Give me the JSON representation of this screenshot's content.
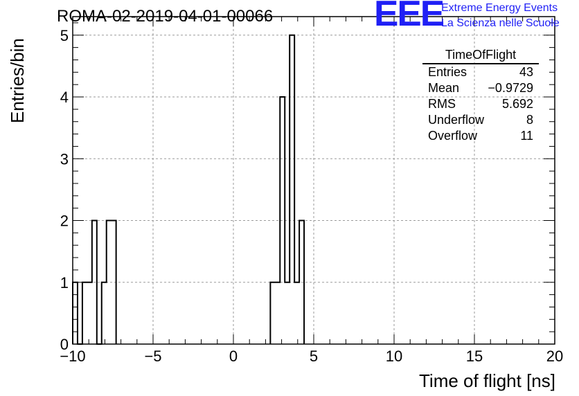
{
  "run_title": "ROMA-02-2019-04-01-00066",
  "logo": {
    "mark": "EEE",
    "line1": "Extreme Energy Events",
    "line2": "La Scienza nelle Scuole",
    "color": "#1f1ff5"
  },
  "stats": {
    "title": "TimeOfFlight",
    "rows": [
      {
        "label": "Entries",
        "value": "43"
      },
      {
        "label": "Mean",
        "value": "−0.9729"
      },
      {
        "label": "RMS",
        "value": "5.692"
      },
      {
        "label": "Underflow",
        "value": "8"
      },
      {
        "label": "Overflow",
        "value": "11"
      }
    ]
  },
  "chart_data": {
    "type": "bar",
    "title": "ROMA-02-2019-04-01-00066",
    "xlabel": "Time of flight [ns]",
    "ylabel": "Entries/bin",
    "xlim": [
      -10,
      20
    ],
    "ylim": [
      0,
      5.3
    ],
    "x_ticks": [
      -10,
      -5,
      0,
      5,
      10,
      15,
      20
    ],
    "x_tick_labels": [
      "−10",
      "−5",
      "0",
      "5",
      "10",
      "15",
      "20"
    ],
    "y_ticks": [
      0,
      1,
      2,
      3,
      4,
      5
    ],
    "y_tick_labels": [
      "0",
      "1",
      "2",
      "3",
      "4",
      "5"
    ],
    "grid": true,
    "bin_width": 0.3,
    "bins": [
      {
        "x_low": -10.0,
        "x_high": -9.7,
        "count": 1
      },
      {
        "x_low": -9.7,
        "x_high": -9.4,
        "count": 0
      },
      {
        "x_low": -9.4,
        "x_high": -9.1,
        "count": 1
      },
      {
        "x_low": -9.1,
        "x_high": -8.8,
        "count": 1
      },
      {
        "x_low": -8.8,
        "x_high": -8.5,
        "count": 2
      },
      {
        "x_low": -8.5,
        "x_high": -8.2,
        "count": 0
      },
      {
        "x_low": -8.2,
        "x_high": -7.9,
        "count": 1
      },
      {
        "x_low": -7.9,
        "x_high": -7.6,
        "count": 2
      },
      {
        "x_low": -7.6,
        "x_high": -7.3,
        "count": 2
      },
      {
        "x_low": 2.3,
        "x_high": 2.9,
        "count": 1
      },
      {
        "x_low": 2.9,
        "x_high": 3.2,
        "count": 4
      },
      {
        "x_low": 3.2,
        "x_high": 3.5,
        "count": 1
      },
      {
        "x_low": 3.5,
        "x_high": 3.8,
        "count": 5
      },
      {
        "x_low": 3.8,
        "x_high": 4.1,
        "count": 1
      },
      {
        "x_low": 4.1,
        "x_high": 4.4,
        "count": 2
      }
    ]
  }
}
